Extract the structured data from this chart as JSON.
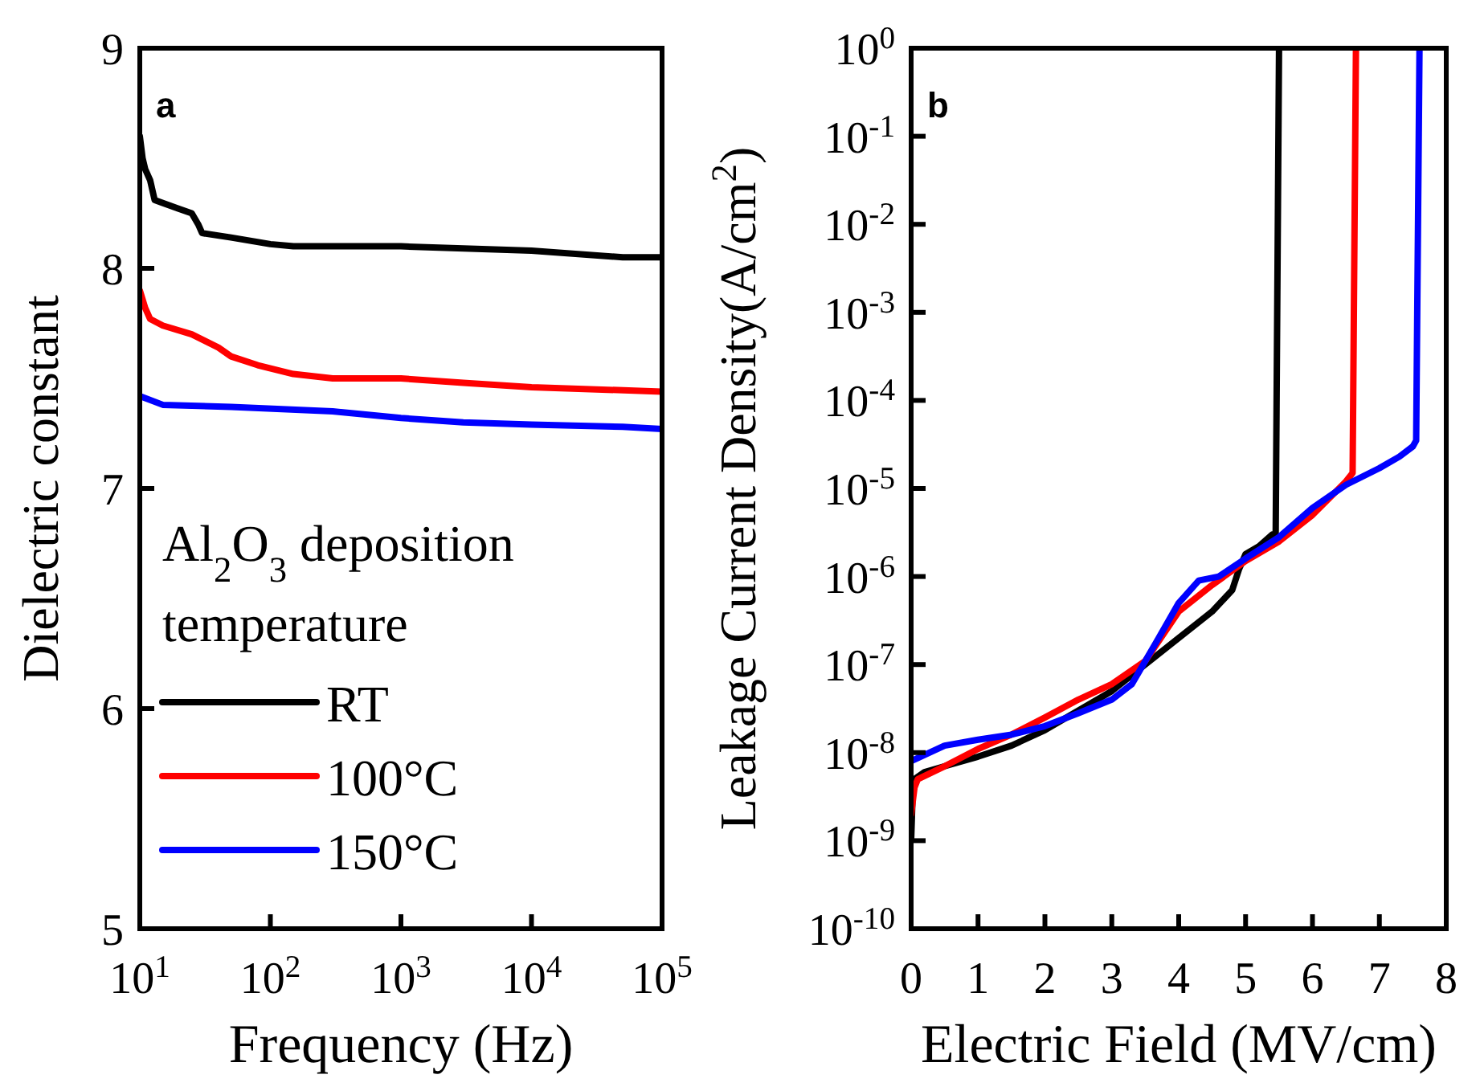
{
  "chart_data": [
    {
      "type": "line",
      "xlabel": "Frequency (Hz)",
      "ylabel": "Dielectric constant",
      "legend_title": "Al$_{2}$O$_{3}$ deposition temperature",
      "legend": "bottom left",
      "log": "x",
      "marker": "none",
      "line_style": "solid",
      "xlim": [
        10,
        100000
      ],
      "ylim": [
        5,
        9
      ],
      "xticks": [
        {
          "value": 10,
          "label": "10$^{1}$"
        },
        {
          "value": 100,
          "label": "10$^{2}$"
        },
        {
          "value": 1000,
          "label": "10$^{3}$"
        },
        {
          "value": 10000,
          "label": "10$^{4}$"
        },
        {
          "value": 100000,
          "label": "10$^{5}$"
        }
      ],
      "yticks": [
        5,
        6,
        7,
        8,
        9
      ],
      "annotations": [
        {
          "text": "a"
        }
      ],
      "series": [
        {
          "name": "RT",
          "color": "#000000",
          "x": [
            10,
            10.5,
            11,
            12,
            13,
            20,
            25,
            28,
            30,
            50,
            100,
            150,
            1000,
            10000,
            50000,
            100000
          ],
          "values": [
            8.6,
            8.5,
            8.45,
            8.4,
            8.31,
            8.27,
            8.25,
            8.2,
            8.16,
            8.14,
            8.11,
            8.1,
            8.1,
            8.08,
            8.05,
            8.05
          ]
        },
        {
          "name": "100°C",
          "color": "#ff0000",
          "x": [
            10,
            11,
            12,
            15,
            25,
            40,
            50,
            80,
            150,
            300,
            1000,
            3000,
            10000,
            100000
          ],
          "values": [
            7.9,
            7.82,
            7.77,
            7.74,
            7.7,
            7.64,
            7.6,
            7.56,
            7.52,
            7.5,
            7.5,
            7.48,
            7.46,
            7.44
          ]
        },
        {
          "name": "150°C",
          "color": "#0000ff",
          "x": [
            10,
            15,
            50,
            300,
            1000,
            3000,
            10000,
            50000,
            100000
          ],
          "values": [
            7.42,
            7.38,
            7.37,
            7.35,
            7.32,
            7.3,
            7.29,
            7.28,
            7.27
          ]
        }
      ]
    },
    {
      "type": "line",
      "xlabel": "Electric Field (MV/cm)",
      "ylabel": "Leakage Current Density(A/cm$^{2}$)",
      "log": "y",
      "marker": "none",
      "line_style": "solid",
      "xlim": [
        0,
        8
      ],
      "ylim": [
        1e-10,
        1
      ],
      "xticks": [
        0,
        1,
        2,
        3,
        4,
        5,
        6,
        7,
        8
      ],
      "yticks": [
        {
          "value": 1e-10,
          "label": "10$^{-10}$"
        },
        {
          "value": 1e-09,
          "label": "10$^{-9}$"
        },
        {
          "value": 1e-08,
          "label": "10$^{-8}$"
        },
        {
          "value": 1e-07,
          "label": "10$^{-7}$"
        },
        {
          "value": 1e-06,
          "label": "10$^{-6}$"
        },
        {
          "value": 1e-05,
          "label": "10$^{-5}$"
        },
        {
          "value": 0.0001,
          "label": "10$^{-4}$"
        },
        {
          "value": 0.001,
          "label": "10$^{-3}$"
        },
        {
          "value": 0.01,
          "label": "10$^{-2}$"
        },
        {
          "value": 0.1,
          "label": "10$^{-1}$"
        },
        {
          "value": 1,
          "label": "10$^{0}$"
        }
      ],
      "annotations": [
        {
          "text": "b"
        }
      ],
      "series": [
        {
          "color": "#000000",
          "x": [
            0,
            0.02,
            0.05,
            0.2,
            0.5,
            1,
            1.5,
            2,
            2.5,
            3,
            3.5,
            4,
            4.5,
            4.8,
            4.9,
            5,
            5.2,
            5.4,
            5.45,
            5.5
          ],
          "values": [
            1e-09,
            3e-09,
            5e-09,
            6e-09,
            7e-09,
            9e-09,
            1.2e-08,
            1.8e-08,
            3e-08,
            5e-08,
            1e-07,
            2e-07,
            4e-07,
            7e-07,
            1.2e-06,
            1.8e-06,
            2.2e-06,
            3e-06,
            3e-06,
            1
          ]
        },
        {
          "color": "#ff0000",
          "x": [
            0,
            0.05,
            0.1,
            0.5,
            1,
            1.5,
            2,
            2.5,
            3,
            3.5,
            4,
            4.5,
            5,
            5.5,
            6,
            6.5,
            6.6,
            6.65
          ],
          "values": [
            2e-09,
            4e-09,
            5e-09,
            7e-09,
            1.1e-08,
            1.6e-08,
            2.5e-08,
            4e-08,
            6e-08,
            1.1e-07,
            4e-07,
            8e-07,
            1.5e-06,
            2.5e-06,
            5e-06,
            1.2e-05,
            1.5e-05,
            1
          ]
        },
        {
          "color": "#0000ff",
          "x": [
            0,
            0.5,
            1,
            1.5,
            2,
            2.5,
            3,
            3.3,
            3.7,
            4,
            4.3,
            4.6,
            5,
            5.5,
            6,
            6.5,
            7,
            7.3,
            7.5,
            7.55,
            7.6
          ],
          "values": [
            8e-09,
            1.2e-08,
            1.4e-08,
            1.6e-08,
            2e-08,
            2.8e-08,
            4e-08,
            6e-08,
            2e-07,
            5e-07,
            9e-07,
            1e-06,
            1.6e-06,
            2.8e-06,
            6e-06,
            1.1e-05,
            1.7e-05,
            2.3e-05,
            3e-05,
            3.5e-05,
            1
          ]
        }
      ]
    }
  ]
}
